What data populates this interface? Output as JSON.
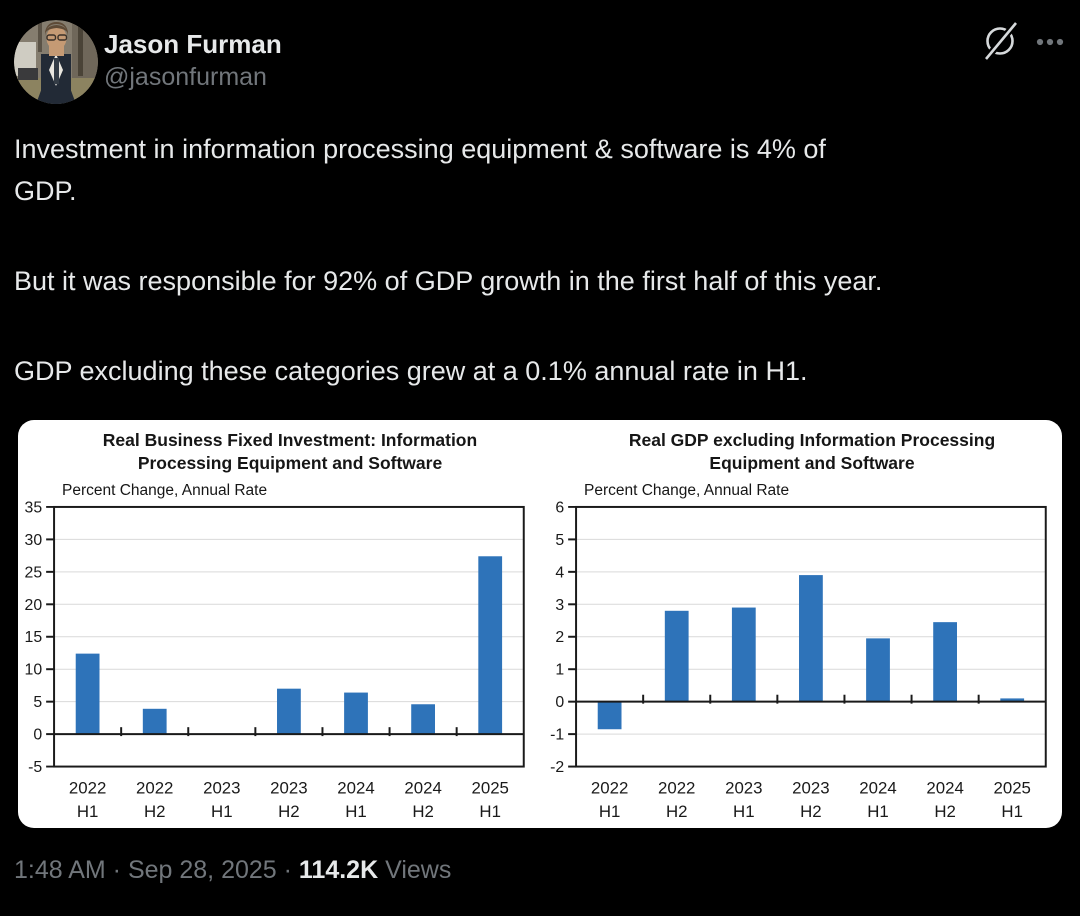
{
  "tweet": {
    "author_name": "Jason Furman",
    "author_handle": "@jasonfurman",
    "body_lines": [
      "Investment in information processing equipment & software is 4% of",
      "GDP.",
      "But it was responsible for 92% of GDP growth in the first half of this year.",
      "GDP excluding these categories grew at a 0.1% annual rate in H1."
    ],
    "meta": {
      "timestamp": "1:48 AM · Sep 28, 2025",
      "separator": " · ",
      "views_count": "114.2K",
      "views_label": " Views"
    }
  },
  "icons": {
    "grok": "grok-circle-slash",
    "more": "ellipsis-three-dots"
  },
  "colors": {
    "background": "#000000",
    "text_primary": "#e7e9ea",
    "text_secondary": "#71767b",
    "card": "#ffffff",
    "bar": "#2e73b9",
    "grid": "#d9d9d9",
    "axis": "#1a1a1a"
  },
  "chart_data": [
    {
      "type": "bar",
      "title_line1": "Real Business Fixed Investment: Information",
      "title_line2": "Processing Equipment and Software",
      "axis_note": "Percent Change, Annual Rate",
      "categories": [
        "2022 H1",
        "2022 H2",
        "2023 H1",
        "2023 H2",
        "2024 H1",
        "2024 H2",
        "2025 H1"
      ],
      "values": [
        12.4,
        3.9,
        0.1,
        7.0,
        6.4,
        4.6,
        27.4
      ],
      "ylim": [
        -5,
        35
      ],
      "yticks": [
        -5,
        0,
        5,
        10,
        15,
        20,
        25,
        30,
        35
      ],
      "bar_color": "#2e73b9",
      "grid": true,
      "legend": "none"
    },
    {
      "type": "bar",
      "title_line1": "Real GDP excluding Information Processing",
      "title_line2": "Equipment and Software",
      "axis_note": "Percent Change, Annual Rate",
      "categories": [
        "2022 H1",
        "2022 H2",
        "2023 H1",
        "2023 H2",
        "2024 H1",
        "2024 H2",
        "2025 H1"
      ],
      "values": [
        -0.85,
        2.8,
        2.9,
        3.9,
        1.95,
        2.45,
        0.1
      ],
      "ylim": [
        -2,
        6
      ],
      "yticks": [
        -2,
        -1,
        0,
        1,
        2,
        3,
        4,
        5,
        6
      ],
      "bar_color": "#2e73b9",
      "grid": true,
      "legend": "none"
    }
  ]
}
